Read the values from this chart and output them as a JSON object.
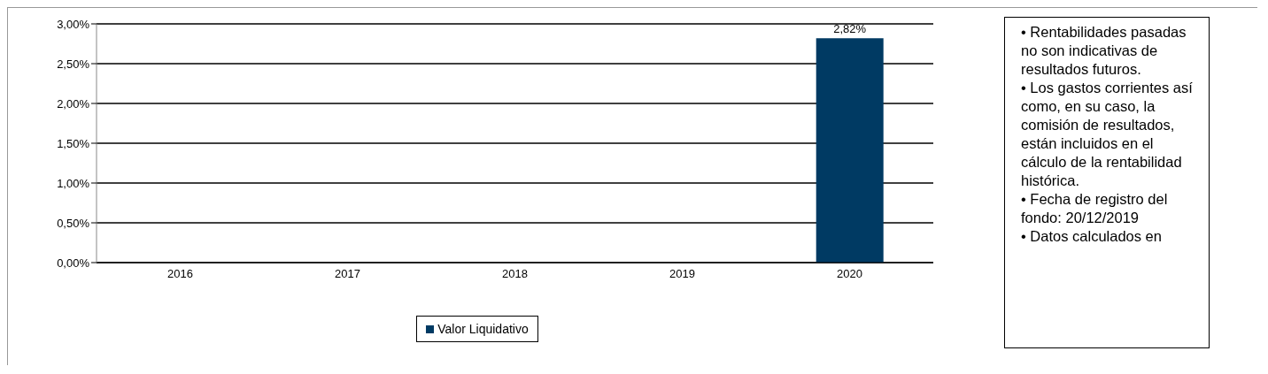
{
  "chart_data": {
    "type": "bar",
    "categories": [
      "2016",
      "2017",
      "2018",
      "2019",
      "2020"
    ],
    "series": [
      {
        "name": "Valor Liquidativo",
        "color": "#003a63",
        "values": [
          null,
          null,
          null,
          null,
          2.82
        ],
        "value_labels": [
          null,
          null,
          null,
          null,
          "2,82%"
        ]
      }
    ],
    "ylim": [
      0,
      3
    ],
    "yticks": [
      {
        "value": 0,
        "label": "0,00%"
      },
      {
        "value": 0.5,
        "label": "0,50%"
      },
      {
        "value": 1,
        "label": "1,00%"
      },
      {
        "value": 1.5,
        "label": "1,50%"
      },
      {
        "value": 2,
        "label": "2,00%"
      },
      {
        "value": 2.5,
        "label": "2,50%"
      },
      {
        "value": 3,
        "label": "3,00%"
      }
    ],
    "grid": "y",
    "legend": "bottom",
    "annotations": [
      "• Rentabilidades pasadas no son indicativas de resultados futuros.",
      "• Los gastos corrientes así como, en su caso, la comisión de resultados, están incluidos en el cálculo de la rentabilidad histórica.",
      "• Fecha de registro del fondo: 20/12/2019",
      "• Datos calculados en"
    ]
  }
}
